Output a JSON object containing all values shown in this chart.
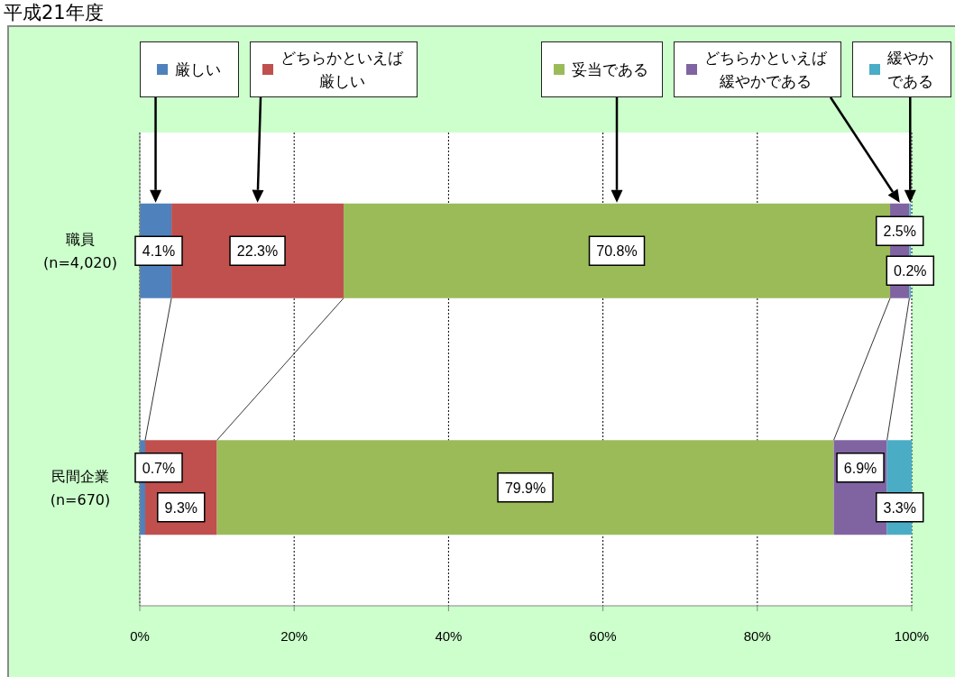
{
  "chart_data": {
    "type": "bar",
    "orientation": "horizontal",
    "stacked": true,
    "title": "平成21年度",
    "categories": [
      "職員\n(n=4,020)",
      "民間企業\n(n=670)"
    ],
    "series": [
      {
        "name": "厳しい",
        "color": "#4f81bd",
        "values": [
          4.1,
          0.7
        ],
        "value_labels": [
          "4.1%",
          "0.7%"
        ]
      },
      {
        "name": "どちらかといえば厳しい",
        "color": "#c0504d",
        "values": [
          22.3,
          9.3
        ],
        "value_labels": [
          "22.3%",
          "9.3%"
        ]
      },
      {
        "name": "妥当である",
        "color": "#9bbb59",
        "values": [
          70.8,
          79.9
        ],
        "value_labels": [
          "70.8%",
          "79.9%"
        ]
      },
      {
        "name": "どちらかといえば緩やかである",
        "color": "#8064a2",
        "values": [
          2.5,
          6.9
        ],
        "value_labels": [
          "2.5%",
          "6.9%"
        ]
      },
      {
        "name": "緩やかである",
        "color": "#4bacc6",
        "values": [
          0.2,
          3.3
        ],
        "value_labels": [
          "0.2%",
          "3.3%"
        ]
      }
    ],
    "xlim": [
      0,
      100
    ],
    "xticks": [
      {
        "value": 0,
        "label": "0%"
      },
      {
        "value": 20,
        "label": "20%"
      },
      {
        "value": 40,
        "label": "40%"
      },
      {
        "value": 60,
        "label": "60%"
      },
      {
        "value": 80,
        "label": "80%"
      },
      {
        "value": 100,
        "label": "100%"
      }
    ],
    "grid": "x",
    "legend": "top"
  }
}
